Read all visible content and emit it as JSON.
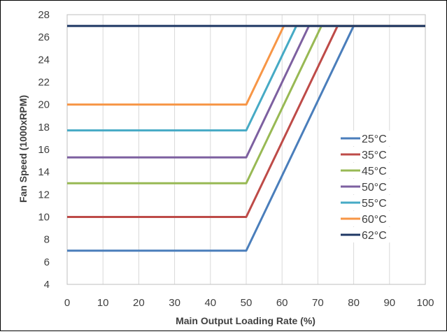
{
  "chart_data": {
    "type": "line",
    "title": "",
    "xlabel": "Main Output Loading Rate (%)",
    "ylabel": "Fan Speed (1000xRPM)",
    "xlim": [
      0,
      100
    ],
    "ylim": [
      4,
      28
    ],
    "x_ticks": [
      0,
      10,
      20,
      30,
      40,
      50,
      60,
      70,
      80,
      90,
      100
    ],
    "y_ticks": [
      4,
      6,
      8,
      10,
      12,
      14,
      16,
      18,
      20,
      22,
      24,
      26,
      28
    ],
    "grid": "vertical",
    "legend_position": "right",
    "series": [
      {
        "name": "25°C",
        "color": "#4a7ebb",
        "x": [
          0,
          50,
          80,
          100
        ],
        "y": [
          7,
          7,
          27,
          27
        ]
      },
      {
        "name": "35°C",
        "color": "#be4b48",
        "x": [
          0,
          50,
          75.5,
          100
        ],
        "y": [
          10,
          10,
          27,
          27
        ]
      },
      {
        "name": "45°C",
        "color": "#98b954",
        "x": [
          0,
          50,
          71,
          100
        ],
        "y": [
          13,
          13,
          27,
          27
        ]
      },
      {
        "name": "50°C",
        "color": "#7d60a0",
        "x": [
          0,
          50,
          67.5,
          100
        ],
        "y": [
          15.3,
          15.3,
          27,
          27
        ]
      },
      {
        "name": "55°C",
        "color": "#46aac5",
        "x": [
          0,
          50,
          64,
          100
        ],
        "y": [
          17.7,
          17.7,
          27,
          27
        ]
      },
      {
        "name": "60°C",
        "color": "#f79646",
        "x": [
          0,
          50,
          60.5,
          100
        ],
        "y": [
          20,
          20,
          27,
          27
        ]
      },
      {
        "name": "62°C",
        "color": "#1f3864",
        "x": [
          0,
          100
        ],
        "y": [
          27,
          27
        ]
      }
    ]
  }
}
